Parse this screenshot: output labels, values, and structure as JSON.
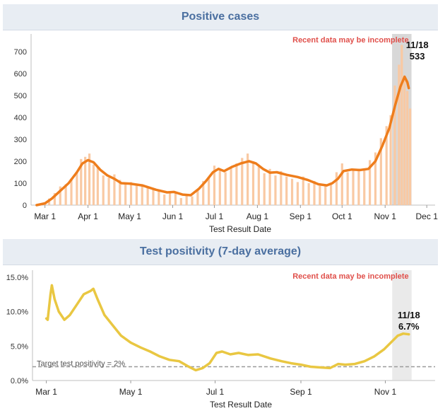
{
  "chart_data": [
    {
      "type": "bar",
      "title": "Positive cases",
      "note": "Recent data may be incomplete",
      "xlabel": "Test Result Date",
      "ylabel": "",
      "ylim": [
        0,
        780
      ],
      "yticks": [
        0,
        100,
        200,
        300,
        400,
        500,
        600,
        700
      ],
      "xticks": [
        {
          "date": "2020-03-01",
          "label": "Mar 1"
        },
        {
          "date": "2020-04-01",
          "label": "Apr 1"
        },
        {
          "date": "2020-05-01",
          "label": "May 1"
        },
        {
          "date": "2020-06-01",
          "label": "Jun 1"
        },
        {
          "date": "2020-07-01",
          "label": "Jul 1"
        },
        {
          "date": "2020-08-01",
          "label": "Aug 1"
        },
        {
          "date": "2020-09-01",
          "label": "Sep 1"
        },
        {
          "date": "2020-10-01",
          "label": "Oct 1"
        },
        {
          "date": "2020-11-01",
          "label": "Nov 1"
        },
        {
          "date": "2020-12-01",
          "label": "Dec 1"
        }
      ],
      "xrange": [
        "2020-02-20",
        "2020-12-07"
      ],
      "incomplete_range": [
        "2020-11-06",
        "2020-11-20"
      ],
      "bar_color": "#f9c9a3",
      "line_color": "#ee7d1c",
      "shade_color": "#b8b8b8",
      "series": [
        {
          "type": "bar",
          "values": [
            [
              "2020-02-24",
              2
            ],
            [
              "2020-03-01",
              10
            ],
            [
              "2020-03-04",
              30
            ],
            [
              "2020-03-08",
              55
            ],
            [
              "2020-03-12",
              85
            ],
            [
              "2020-03-16",
              95
            ],
            [
              "2020-03-20",
              120
            ],
            [
              "2020-03-24",
              150
            ],
            [
              "2020-03-27",
              210
            ],
            [
              "2020-03-30",
              220
            ],
            [
              "2020-04-02",
              235
            ],
            [
              "2020-04-05",
              185
            ],
            [
              "2020-04-08",
              175
            ],
            [
              "2020-04-12",
              135
            ],
            [
              "2020-04-16",
              125
            ],
            [
              "2020-04-20",
              140
            ],
            [
              "2020-04-24",
              115
            ],
            [
              "2020-04-28",
              95
            ],
            [
              "2020-05-02",
              105
            ],
            [
              "2020-05-06",
              88
            ],
            [
              "2020-05-10",
              95
            ],
            [
              "2020-05-14",
              82
            ],
            [
              "2020-05-18",
              75
            ],
            [
              "2020-05-22",
              72
            ],
            [
              "2020-05-26",
              48
            ],
            [
              "2020-05-30",
              55
            ],
            [
              "2020-06-03",
              60
            ],
            [
              "2020-06-07",
              32
            ],
            [
              "2020-06-11",
              45
            ],
            [
              "2020-06-15",
              40
            ],
            [
              "2020-06-19",
              70
            ],
            [
              "2020-06-23",
              110
            ],
            [
              "2020-06-27",
              125
            ],
            [
              "2020-07-01",
              180
            ],
            [
              "2020-07-05",
              160
            ],
            [
              "2020-07-09",
              150
            ],
            [
              "2020-07-13",
              175
            ],
            [
              "2020-07-17",
              190
            ],
            [
              "2020-07-21",
              215
            ],
            [
              "2020-07-25",
              235
            ],
            [
              "2020-07-29",
              200
            ],
            [
              "2020-08-02",
              175
            ],
            [
              "2020-08-06",
              145
            ],
            [
              "2020-08-10",
              165
            ],
            [
              "2020-08-14",
              135
            ],
            [
              "2020-08-18",
              155
            ],
            [
              "2020-08-22",
              130
            ],
            [
              "2020-08-26",
              120
            ],
            [
              "2020-08-30",
              105
            ],
            [
              "2020-09-03",
              130
            ],
            [
              "2020-09-07",
              100
            ],
            [
              "2020-09-11",
              110
            ],
            [
              "2020-09-15",
              88
            ],
            [
              "2020-09-19",
              92
            ],
            [
              "2020-09-23",
              100
            ],
            [
              "2020-09-27",
              150
            ],
            [
              "2020-10-01",
              190
            ],
            [
              "2020-10-05",
              150
            ],
            [
              "2020-10-09",
              165
            ],
            [
              "2020-10-13",
              155
            ],
            [
              "2020-10-17",
              160
            ],
            [
              "2020-10-21",
              205
            ],
            [
              "2020-10-25",
              240
            ],
            [
              "2020-10-29",
              305
            ],
            [
              "2020-11-02",
              360
            ],
            [
              "2020-11-05",
              410
            ],
            [
              "2020-11-08",
              545
            ],
            [
              "2020-11-11",
              640
            ],
            [
              "2020-11-13",
              730
            ],
            [
              "2020-11-15",
              590
            ],
            [
              "2020-11-17",
              520
            ],
            [
              "2020-11-19",
              440
            ]
          ]
        },
        {
          "type": "line",
          "values": [
            [
              "2020-02-24",
              0
            ],
            [
              "2020-03-01",
              8
            ],
            [
              "2020-03-06",
              30
            ],
            [
              "2020-03-12",
              65
            ],
            [
              "2020-03-18",
              100
            ],
            [
              "2020-03-24",
              150
            ],
            [
              "2020-03-28",
              190
            ],
            [
              "2020-04-01",
              205
            ],
            [
              "2020-04-05",
              195
            ],
            [
              "2020-04-10",
              160
            ],
            [
              "2020-04-15",
              135
            ],
            [
              "2020-04-20",
              120
            ],
            [
              "2020-04-25",
              100
            ],
            [
              "2020-05-01",
              98
            ],
            [
              "2020-05-10",
              90
            ],
            [
              "2020-05-20",
              70
            ],
            [
              "2020-05-28",
              58
            ],
            [
              "2020-06-02",
              60
            ],
            [
              "2020-06-08",
              48
            ],
            [
              "2020-06-14",
              45
            ],
            [
              "2020-06-20",
              75
            ],
            [
              "2020-06-25",
              110
            ],
            [
              "2020-06-30",
              150
            ],
            [
              "2020-07-04",
              165
            ],
            [
              "2020-07-08",
              155
            ],
            [
              "2020-07-14",
              175
            ],
            [
              "2020-07-20",
              190
            ],
            [
              "2020-07-26",
              200
            ],
            [
              "2020-07-31",
              190
            ],
            [
              "2020-08-05",
              165
            ],
            [
              "2020-08-10",
              148
            ],
            [
              "2020-08-15",
              150
            ],
            [
              "2020-08-22",
              138
            ],
            [
              "2020-08-30",
              128
            ],
            [
              "2020-09-06",
              115
            ],
            [
              "2020-09-14",
              95
            ],
            [
              "2020-09-20",
              90
            ],
            [
              "2020-09-24",
              100
            ],
            [
              "2020-09-28",
              120
            ],
            [
              "2020-10-02",
              155
            ],
            [
              "2020-10-08",
              162
            ],
            [
              "2020-10-14",
              160
            ],
            [
              "2020-10-20",
              165
            ],
            [
              "2020-10-25",
              200
            ],
            [
              "2020-10-30",
              270
            ],
            [
              "2020-11-04",
              350
            ],
            [
              "2020-11-08",
              450
            ],
            [
              "2020-11-12",
              540
            ],
            [
              "2020-11-15",
              585
            ],
            [
              "2020-11-17",
              560
            ],
            [
              "2020-11-18",
              533
            ]
          ]
        }
      ],
      "annotation": {
        "date": "2020-11-18",
        "label": "11/18",
        "value": 533,
        "value_label": "533"
      }
    },
    {
      "type": "line",
      "title": "Test positivity (7-day average)",
      "note": "Recent data may be incomplete",
      "xlabel": "Test Result Date",
      "ylabel": "",
      "ylim": [
        0,
        0.16
      ],
      "yticks": [
        {
          "value": 0,
          "label": "0.0%"
        },
        {
          "value": 0.05,
          "label": "5.0%"
        },
        {
          "value": 0.1,
          "label": "10.0%"
        },
        {
          "value": 0.15,
          "label": "15.0%"
        }
      ],
      "xticks": [
        {
          "date": "2020-03-01",
          "label": "Mar 1"
        },
        {
          "date": "2020-05-01",
          "label": "May 1"
        },
        {
          "date": "2020-07-01",
          "label": "Jul 1"
        },
        {
          "date": "2020-09-01",
          "label": "Sep 1"
        },
        {
          "date": "2020-11-01",
          "label": "Nov 1"
        }
      ],
      "xrange": [
        "2020-02-20",
        "2020-12-07"
      ],
      "incomplete_range": [
        "2020-11-06",
        "2020-11-20"
      ],
      "line_color": "#e9c742",
      "shade_color": "#d9d9d9",
      "target": {
        "value": 0.02,
        "label": "Target test positivity = 2%"
      },
      "series": [
        {
          "type": "line",
          "values": [
            [
              "2020-03-01",
              0.09
            ],
            [
              "2020-03-02",
              0.088
            ],
            [
              "2020-03-04",
              0.125
            ],
            [
              "2020-03-05",
              0.138
            ],
            [
              "2020-03-07",
              0.118
            ],
            [
              "2020-03-10",
              0.1
            ],
            [
              "2020-03-14",
              0.088
            ],
            [
              "2020-03-18",
              0.095
            ],
            [
              "2020-03-23",
              0.11
            ],
            [
              "2020-03-28",
              0.125
            ],
            [
              "2020-04-02",
              0.13
            ],
            [
              "2020-04-04",
              0.133
            ],
            [
              "2020-04-07",
              0.118
            ],
            [
              "2020-04-12",
              0.095
            ],
            [
              "2020-04-18",
              0.08
            ],
            [
              "2020-04-24",
              0.065
            ],
            [
              "2020-05-01",
              0.055
            ],
            [
              "2020-05-08",
              0.048
            ],
            [
              "2020-05-15",
              0.042
            ],
            [
              "2020-05-22",
              0.035
            ],
            [
              "2020-05-29",
              0.03
            ],
            [
              "2020-06-05",
              0.028
            ],
            [
              "2020-06-12",
              0.02
            ],
            [
              "2020-06-17",
              0.015
            ],
            [
              "2020-06-22",
              0.018
            ],
            [
              "2020-06-27",
              0.025
            ],
            [
              "2020-07-02",
              0.04
            ],
            [
              "2020-07-06",
              0.042
            ],
            [
              "2020-07-12",
              0.038
            ],
            [
              "2020-07-18",
              0.04
            ],
            [
              "2020-07-25",
              0.037
            ],
            [
              "2020-08-01",
              0.038
            ],
            [
              "2020-08-10",
              0.032
            ],
            [
              "2020-08-18",
              0.028
            ],
            [
              "2020-08-25",
              0.025
            ],
            [
              "2020-09-01",
              0.023
            ],
            [
              "2020-09-08",
              0.02
            ],
            [
              "2020-09-15",
              0.019
            ],
            [
              "2020-09-22",
              0.018
            ],
            [
              "2020-09-28",
              0.024
            ],
            [
              "2020-10-03",
              0.023
            ],
            [
              "2020-10-10",
              0.024
            ],
            [
              "2020-10-17",
              0.028
            ],
            [
              "2020-10-24",
              0.035
            ],
            [
              "2020-10-31",
              0.045
            ],
            [
              "2020-11-05",
              0.055
            ],
            [
              "2020-11-10",
              0.065
            ],
            [
              "2020-11-14",
              0.068
            ],
            [
              "2020-11-18",
              0.067
            ]
          ]
        }
      ],
      "annotation": {
        "date": "2020-11-18",
        "label": "11/18",
        "value": 0.067,
        "value_label": "6.7%"
      }
    }
  ]
}
